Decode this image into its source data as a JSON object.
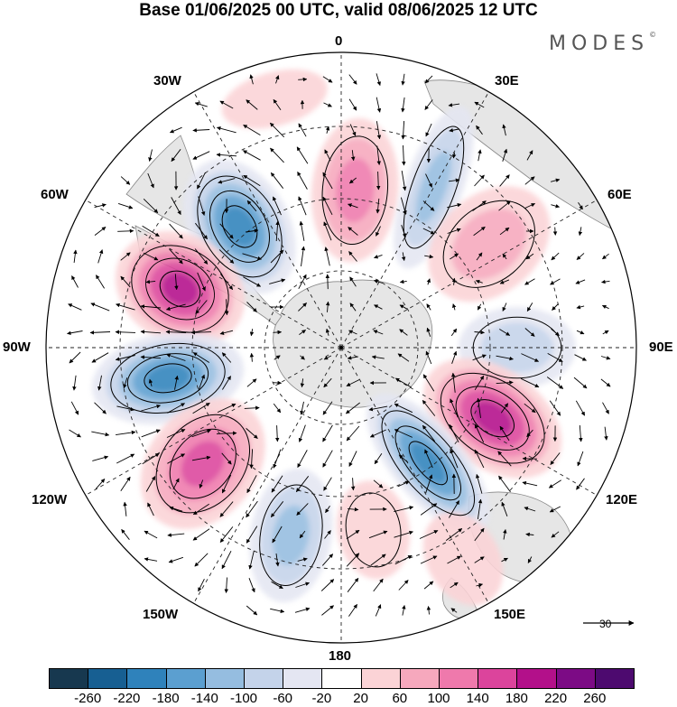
{
  "title": "Base 01/06/2025 00 UTC, valid 08/06/2025 12 UTC",
  "brand": {
    "text": "MODES",
    "mark": "©"
  },
  "longitude_labels": {
    "lon_0": "0",
    "lon_30e": "30E",
    "lon_60e": "60E",
    "lon_90e": "90E",
    "lon_120e": "120E",
    "lon_150e": "150E",
    "lon_180": "180",
    "lon_150w": "150W",
    "lon_120w": "120W",
    "lon_90w": "90W",
    "lon_60w": "60W",
    "lon_30w": "30W"
  },
  "colorbar": {
    "ticks": [
      "-260",
      "-220",
      "-180",
      "-140",
      "-100",
      "-60",
      "-20",
      "20",
      "60",
      "100",
      "140",
      "180",
      "220",
      "260"
    ],
    "colors": [
      "#17384f",
      "#175f92",
      "#2f82bb",
      "#5b9fd0",
      "#95bde0",
      "#c4d3ea",
      "#e4e6f2",
      "#ffffff",
      "#fbd3d6",
      "#f6a8bd",
      "#ef79ac",
      "#dc449c",
      "#b3108a",
      "#7c0b85",
      "#4d0a6f"
    ]
  },
  "reference_vector": {
    "value": "30"
  },
  "map_data": {
    "projection": "south-polar-stereographic",
    "anomaly_centers": [
      {
        "sign": "negative",
        "magnitude": 220,
        "region": "40W"
      },
      {
        "sign": "positive",
        "magnitude": 140,
        "region": "5E"
      },
      {
        "sign": "negative",
        "magnitude": 140,
        "region": "30E"
      },
      {
        "sign": "positive",
        "magnitude": 100,
        "region": "55E"
      },
      {
        "sign": "positive",
        "magnitude": 220,
        "region": "70W"
      },
      {
        "sign": "negative",
        "magnitude": 100,
        "region": "90E"
      },
      {
        "sign": "negative",
        "magnitude": 220,
        "region": "100W"
      },
      {
        "sign": "positive",
        "magnitude": 220,
        "region": "115E"
      },
      {
        "sign": "negative",
        "magnitude": 220,
        "region": "140E"
      },
      {
        "sign": "positive",
        "magnitude": 180,
        "region": "130W"
      },
      {
        "sign": "negative",
        "magnitude": 140,
        "region": "165W"
      },
      {
        "sign": "positive",
        "magnitude": 60,
        "region": "170E"
      }
    ],
    "colors": {
      "land": "#e6e6e6",
      "coast": "#888888",
      "grid": "#222222",
      "contour": "#000000"
    }
  }
}
